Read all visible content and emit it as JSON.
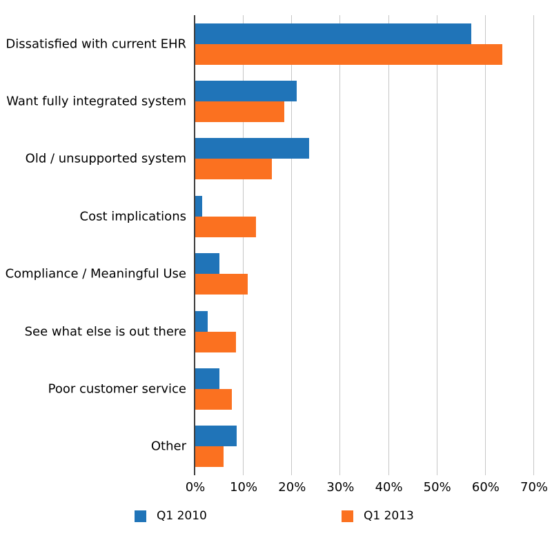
{
  "chart_data": {
    "type": "bar",
    "orientation": "horizontal",
    "title": "",
    "xlabel": "",
    "ylabel": "",
    "categories": [
      "Dissatisfied with current EHR",
      "Want fully integrated system",
      "Old / unsupported system",
      "Cost implications",
      "Compliance / Meaningful Use",
      "See what else is out there",
      "Poor customer service",
      "Other"
    ],
    "series": [
      {
        "name": "Q1 2010",
        "color": "#2074B8",
        "values": [
          57,
          21,
          23.5,
          1.4,
          5,
          2.6,
          5,
          8.6
        ]
      },
      {
        "name": "Q1 2013",
        "color": "#FB7120",
        "values": [
          63.5,
          18.4,
          15.8,
          12.5,
          10.8,
          8.4,
          7.5,
          5.8
        ]
      }
    ],
    "x_ticks": [
      "0%",
      "10%",
      "20%",
      "30%",
      "40%",
      "50%",
      "60%",
      "70%"
    ],
    "xlim": [
      0,
      70
    ],
    "grid": true,
    "gridline_color": "#c6c6c6",
    "axis_line_color": "#3d3d3d",
    "legend_position": "bottom"
  }
}
